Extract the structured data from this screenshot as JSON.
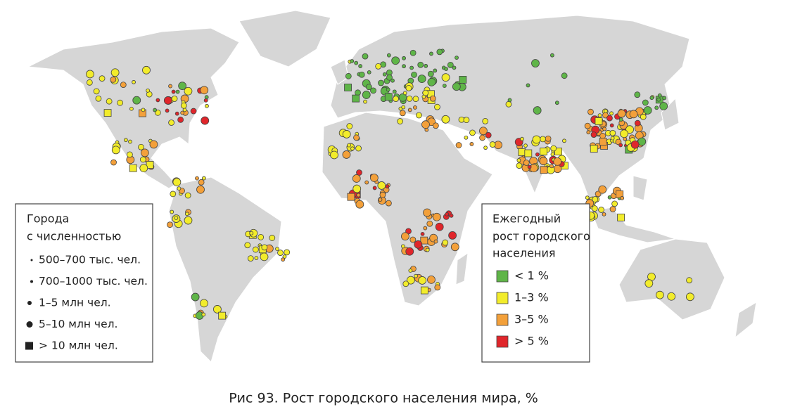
{
  "size_legend": {
    "title_lines": [
      "Города",
      "с численностью"
    ],
    "items": [
      "500–700 тыс. чел.",
      "700–1000 тыс. чел.",
      "1–5 млн чел.",
      "5–10 млн чел.",
      "> 10 млн чел."
    ]
  },
  "growth_legend": {
    "title_lines": [
      "Ежегодный",
      "рост городского",
      "населения"
    ],
    "items": [
      {
        "label": "< 1 %",
        "color": "#5fb548"
      },
      {
        "label": "1–3 %",
        "color": "#f2ec2b"
      },
      {
        "label": "3–5 %",
        "color": "#f3a03a"
      },
      {
        "label": "> 5 %",
        "color": "#e0262b"
      }
    ]
  },
  "caption": "Рис 93. Рост городского населения мира, %"
}
